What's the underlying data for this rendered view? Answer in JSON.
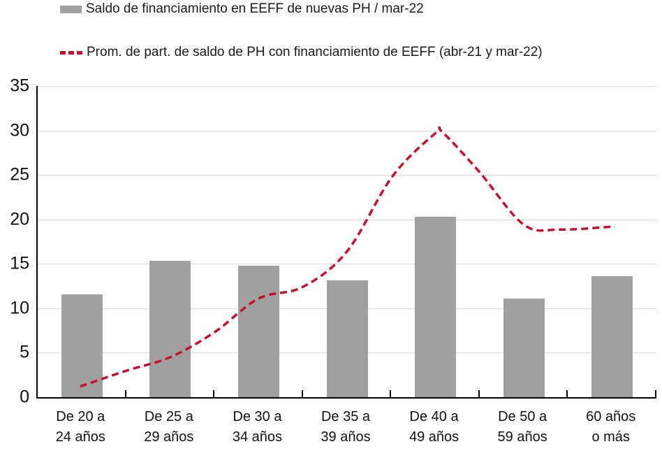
{
  "chart_data": {
    "type": "combo",
    "categories": [
      "De 20 a\n24 años",
      "De 25 a\n29 años",
      "De 30 a\n34 años",
      "De 35 a\n39 años",
      "De 40 a\n49 años",
      "De 50 a\n59 años",
      "60 años\no más"
    ],
    "series": [
      {
        "name": "Saldo de financiamiento en EEFF de nuevas PH / mar-22",
        "type": "bar",
        "color": "#a0a0a0",
        "values": [
          11.6,
          15.3,
          14.8,
          13.1,
          20.3,
          11.1,
          13.6
        ]
      },
      {
        "name": "Prom. de part. de saldo de PH con financiamiento de EEFF (abr-21 y mar-22)",
        "type": "line",
        "line_style": "dashed",
        "color": "#c8102e",
        "values": [
          1.2,
          4.5,
          11.1,
          16.4,
          29.8,
          19.4,
          19.2
        ],
        "curve_samples": [
          [
            0.48,
            1.2
          ],
          [
            1.01,
            3.0
          ],
          [
            1.5,
            4.5
          ],
          [
            2.0,
            7.3
          ],
          [
            2.5,
            11.1
          ],
          [
            3.0,
            12.4
          ],
          [
            3.5,
            16.4
          ],
          [
            4.01,
            24.8
          ],
          [
            4.5,
            29.7
          ],
          [
            4.58,
            29.8
          ],
          [
            5.0,
            25.3
          ],
          [
            5.5,
            19.4
          ],
          [
            5.91,
            18.85
          ],
          [
            6.53,
            19.2
          ]
        ]
      }
    ],
    "title": "",
    "xlabel": "",
    "ylabel": "",
    "ylim": [
      0,
      35
    ],
    "yticks": [
      0,
      5,
      10,
      15,
      20,
      25,
      30,
      35
    ],
    "grid": true,
    "gridline_color": "#d9d9d9",
    "axis_color": "#000000",
    "text_color": "#1a1a1a",
    "legend_position": "top-left"
  }
}
